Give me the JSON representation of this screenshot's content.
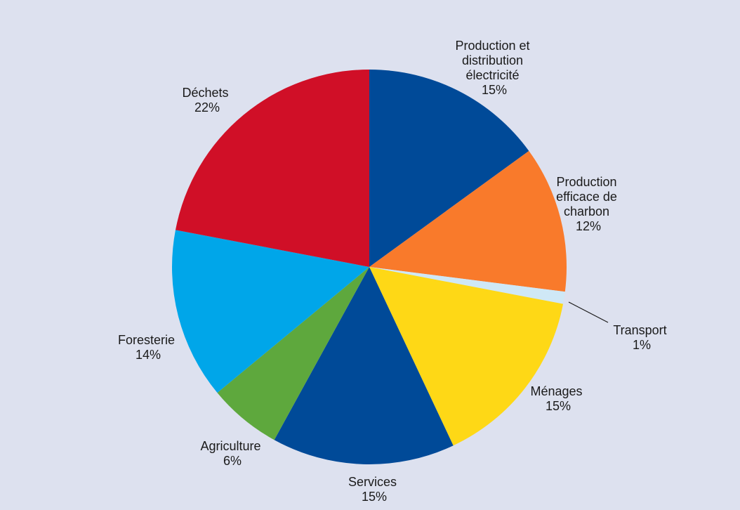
{
  "chart_data": {
    "type": "pie",
    "title": "",
    "slices": [
      {
        "label_lines": [
          "Production  et",
          "distribution",
          "électricité"
        ],
        "value_label": "15%",
        "value": 15,
        "color": "#004a98"
      },
      {
        "label_lines": [
          "Production",
          "efficace de",
          "charbon"
        ],
        "value_label": "12%",
        "value": 12,
        "color": "#f97a2b"
      },
      {
        "label_lines": [
          "Transport"
        ],
        "value_label": "1%",
        "value": 1,
        "color": "#cfe8f6"
      },
      {
        "label_lines": [
          "Ménages"
        ],
        "value_label": "15%",
        "value": 15,
        "color": "#fed816"
      },
      {
        "label_lines": [
          "Services"
        ],
        "value_label": "15%",
        "value": 15,
        "color": "#004a98"
      },
      {
        "label_lines": [
          "Agriculture"
        ],
        "value_label": "6%",
        "value": 6,
        "color": "#5ea83d"
      },
      {
        "label_lines": [
          "Foresterie"
        ],
        "value_label": "14%",
        "value": 14,
        "color": "#00a6e9"
      },
      {
        "label_lines": [
          "Déchets"
        ],
        "value_label": "22%",
        "value": 22,
        "color": "#d00f27"
      }
    ]
  }
}
